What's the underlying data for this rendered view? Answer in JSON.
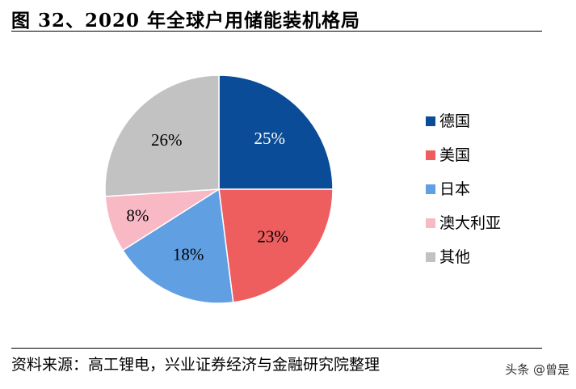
{
  "title": "图 32、2020 年全球户用储能装机格局",
  "source": "资料来源：高工锂电，兴业证券经济与金融研究院整理",
  "watermark": "头条 @曾是",
  "chart_data": {
    "type": "pie",
    "title": "图 32、2020 年全球户用储能装机格局",
    "legend_position": "right",
    "slices": [
      {
        "label": "德国",
        "value": 25,
        "display": "25%",
        "color": "#0A4C97",
        "label_color": "#ffffff"
      },
      {
        "label": "美国",
        "value": 23,
        "display": "23%",
        "color": "#EE5E5E",
        "label_color": "#000000"
      },
      {
        "label": "日本",
        "value": 18,
        "display": "18%",
        "color": "#619FE3",
        "label_color": "#000000"
      },
      {
        "label": "澳大利亚",
        "value": 8,
        "display": "8%",
        "color": "#F8B8C4",
        "label_color": "#000000"
      },
      {
        "label": "其他",
        "value": 26,
        "display": "26%",
        "color": "#C2C2C2",
        "label_color": "#000000"
      }
    ]
  }
}
